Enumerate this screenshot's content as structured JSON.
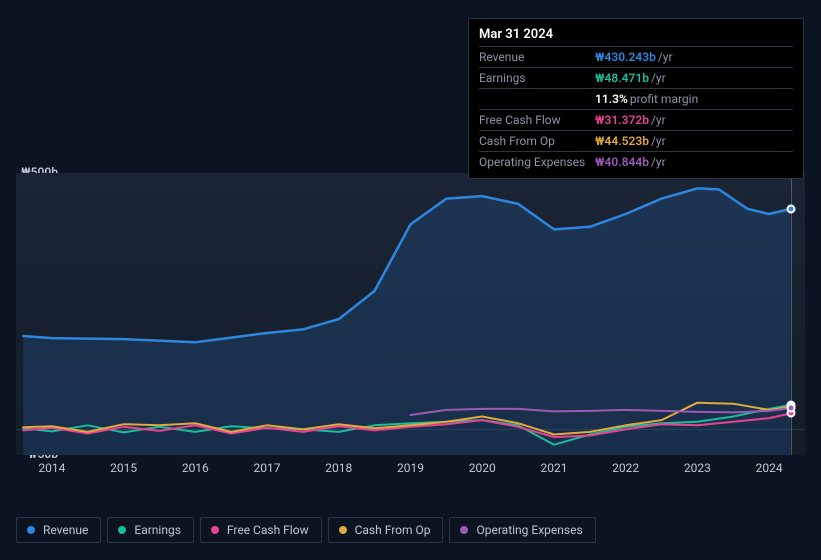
{
  "tooltip": {
    "date": "Mar 31 2024",
    "rows": [
      {
        "label": "Revenue",
        "value": "₩430.243b",
        "unit": "/yr",
        "color": "#2e86de"
      },
      {
        "label": "Earnings",
        "value": "₩48.471b",
        "unit": "/yr",
        "color": "#1abc9c"
      },
      {
        "label": "",
        "value": "11.3%",
        "unit": "profit margin",
        "color": "#ffffff"
      },
      {
        "label": "Free Cash Flow",
        "value": "₩31.372b",
        "unit": "/yr",
        "color": "#e84393"
      },
      {
        "label": "Cash From Op",
        "value": "₩44.523b",
        "unit": "/yr",
        "color": "#e1a93e"
      },
      {
        "label": "Operating Expenses",
        "value": "₩40.844b",
        "unit": "/yr",
        "color": "#9b59b6"
      }
    ]
  },
  "chart": {
    "type": "line-area",
    "background_gradient": [
      "#1a2434",
      "#141c2a"
    ],
    "grid_color": "#2a3544",
    "x": {
      "min": 2013.5,
      "max": 2024.5,
      "labels": [
        "2014",
        "2015",
        "2016",
        "2017",
        "2018",
        "2019",
        "2020",
        "2021",
        "2022",
        "2023",
        "2024"
      ]
    },
    "y": {
      "min": -50,
      "max": 500,
      "ticks": [
        {
          "v": 500,
          "label": "₩500b"
        },
        {
          "v": 0,
          "label": "₩0"
        },
        {
          "v": -50,
          "label": "-₩50b"
        }
      ]
    },
    "cursor_x": 2024.3,
    "series": [
      {
        "name": "Revenue",
        "color": "#2e86de",
        "fill": "rgba(46,134,222,0.18)",
        "width": 2.5,
        "area": true,
        "data": [
          [
            2013.6,
            182
          ],
          [
            2014,
            178
          ],
          [
            2015,
            176
          ],
          [
            2016,
            170
          ],
          [
            2017,
            188
          ],
          [
            2017.5,
            195
          ],
          [
            2018,
            215
          ],
          [
            2018.5,
            270
          ],
          [
            2019,
            400
          ],
          [
            2019.5,
            450
          ],
          [
            2020,
            455
          ],
          [
            2020.5,
            440
          ],
          [
            2021,
            390
          ],
          [
            2021.5,
            395
          ],
          [
            2022,
            420
          ],
          [
            2022.5,
            450
          ],
          [
            2023,
            470
          ],
          [
            2023.3,
            468
          ],
          [
            2023.7,
            430
          ],
          [
            2024,
            420
          ],
          [
            2024.3,
            430
          ]
        ]
      },
      {
        "name": "Earnings",
        "color": "#1abc9c",
        "width": 2,
        "data": [
          [
            2013.6,
            2
          ],
          [
            2014,
            -4
          ],
          [
            2014.5,
            8
          ],
          [
            2015,
            -6
          ],
          [
            2015.5,
            5
          ],
          [
            2016,
            -5
          ],
          [
            2016.5,
            6
          ],
          [
            2017,
            2
          ],
          [
            2017.5,
            0
          ],
          [
            2018,
            -5
          ],
          [
            2018.5,
            8
          ],
          [
            2019,
            12
          ],
          [
            2019.5,
            15
          ],
          [
            2020,
            18
          ],
          [
            2020.5,
            8
          ],
          [
            2021,
            -30
          ],
          [
            2021.5,
            -10
          ],
          [
            2022,
            5
          ],
          [
            2022.5,
            12
          ],
          [
            2023,
            15
          ],
          [
            2023.5,
            25
          ],
          [
            2024,
            40
          ],
          [
            2024.3,
            48
          ]
        ]
      },
      {
        "name": "Free Cash Flow",
        "color": "#e84393",
        "width": 2,
        "data": [
          [
            2013.6,
            -2
          ],
          [
            2014,
            3
          ],
          [
            2014.5,
            -8
          ],
          [
            2015,
            5
          ],
          [
            2015.5,
            -3
          ],
          [
            2016,
            8
          ],
          [
            2016.5,
            -8
          ],
          [
            2017,
            3
          ],
          [
            2017.5,
            -5
          ],
          [
            2018,
            6
          ],
          [
            2018.5,
            -2
          ],
          [
            2019,
            5
          ],
          [
            2019.5,
            10
          ],
          [
            2020,
            18
          ],
          [
            2020.5,
            5
          ],
          [
            2021,
            -15
          ],
          [
            2021.5,
            -12
          ],
          [
            2022,
            0
          ],
          [
            2022.5,
            10
          ],
          [
            2023,
            8
          ],
          [
            2023.5,
            15
          ],
          [
            2024,
            22
          ],
          [
            2024.3,
            31
          ]
        ]
      },
      {
        "name": "Cash From Op",
        "color": "#e1a93e",
        "width": 2,
        "data": [
          [
            2013.6,
            4
          ],
          [
            2014,
            6
          ],
          [
            2014.5,
            -5
          ],
          [
            2015,
            10
          ],
          [
            2015.5,
            8
          ],
          [
            2016,
            12
          ],
          [
            2016.5,
            -5
          ],
          [
            2017,
            8
          ],
          [
            2017.5,
            0
          ],
          [
            2018,
            10
          ],
          [
            2018.5,
            2
          ],
          [
            2019,
            8
          ],
          [
            2019.5,
            15
          ],
          [
            2020,
            25
          ],
          [
            2020.5,
            12
          ],
          [
            2021,
            -10
          ],
          [
            2021.5,
            -5
          ],
          [
            2022,
            8
          ],
          [
            2022.5,
            18
          ],
          [
            2023,
            52
          ],
          [
            2023.5,
            50
          ],
          [
            2024,
            38
          ],
          [
            2024.3,
            44
          ]
        ]
      },
      {
        "name": "Operating Expenses",
        "color": "#9b59b6",
        "width": 2,
        "data": [
          [
            2019,
            28
          ],
          [
            2019.5,
            38
          ],
          [
            2020,
            40
          ],
          [
            2020.5,
            40
          ],
          [
            2021,
            35
          ],
          [
            2021.5,
            36
          ],
          [
            2022,
            38
          ],
          [
            2022.5,
            36
          ],
          [
            2023,
            34
          ],
          [
            2023.5,
            33
          ],
          [
            2024,
            36
          ],
          [
            2024.3,
            41
          ]
        ]
      }
    ]
  },
  "legend": [
    {
      "label": "Revenue",
      "color": "#2e86de"
    },
    {
      "label": "Earnings",
      "color": "#1abc9c"
    },
    {
      "label": "Free Cash Flow",
      "color": "#e84393"
    },
    {
      "label": "Cash From Op",
      "color": "#e1a93e"
    },
    {
      "label": "Operating Expenses",
      "color": "#9b59b6"
    }
  ]
}
